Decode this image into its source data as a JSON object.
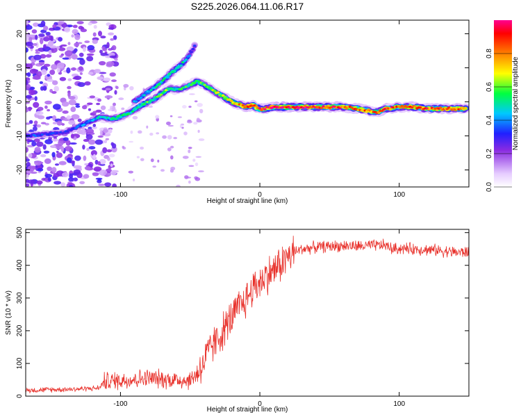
{
  "title": "S225.2026.064.11.06.R17",
  "colors": {
    "snr_line": "#e8302a",
    "axis": "#000000",
    "background": "#ffffff"
  },
  "chart_data": [
    {
      "type": "heatmap",
      "name": "spectrogram",
      "xlabel": "Height of straight line (km)",
      "ylabel": "Frequency (Hz)",
      "xlim": [
        -168,
        150
      ],
      "ylim": [
        -25,
        24
      ],
      "x_ticks": [
        -100,
        0,
        100
      ],
      "y_ticks": [
        -20,
        -10,
        0,
        10,
        20
      ],
      "colorbar": {
        "label": "Normalized spectral amplitude",
        "range": [
          0,
          1
        ],
        "ticks": [
          0.0,
          0.2,
          0.4,
          0.6,
          0.8
        ]
      },
      "ridge": {
        "description": "peak frequency (Hz) vs height (km)",
        "x": [
          -168,
          -140,
          -115,
          -105,
          -95,
          -85,
          -75,
          -65,
          -58,
          -50,
          -45,
          -40,
          -30,
          -20,
          -10,
          -5,
          0,
          10,
          20,
          40,
          60,
          70,
          80,
          85,
          90,
          100,
          110,
          120,
          130,
          140,
          148
        ],
        "y": [
          -10,
          -9,
          -4.5,
          -5,
          -3.5,
          -1,
          1,
          4,
          3.5,
          5,
          6,
          5,
          2.5,
          0,
          -1.5,
          -1,
          -2.2,
          -1.5,
          -1.5,
          -1.5,
          -1.5,
          -2,
          -2.8,
          -3,
          -2,
          -1.5,
          -1.5,
          -2,
          -2,
          -2,
          -2
        ],
        "amplitude": [
          0.35,
          0.3,
          0.45,
          0.5,
          0.5,
          0.55,
          0.55,
          0.6,
          0.5,
          0.55,
          0.6,
          0.6,
          0.65,
          0.7,
          0.85,
          0.9,
          0.9,
          0.95,
          0.95,
          0.9,
          0.85,
          0.85,
          0.8,
          0.8,
          0.85,
          0.85,
          0.85,
          0.85,
          0.85,
          0.85,
          0.85
        ]
      },
      "branch": {
        "description": "upper branch peak frequency (Hz)",
        "x": [
          -90,
          -80,
          -70,
          -62,
          -56,
          -50,
          -46
        ],
        "y": [
          0,
          3,
          6,
          9,
          11,
          14,
          17
        ],
        "amplitude": [
          0.4,
          0.45,
          0.5,
          0.55,
          0.5,
          0.35,
          0.3
        ]
      }
    },
    {
      "type": "line",
      "name": "snr",
      "xlabel": "Height of straight line (km)",
      "ylabel": "SNR (10 * v/v)",
      "xlim": [
        -168,
        150
      ],
      "ylim": [
        0,
        510
      ],
      "x_ticks": [
        -100,
        0,
        100
      ],
      "y_ticks": [
        0,
        100,
        200,
        300,
        400,
        500
      ],
      "series": [
        {
          "name": "SNR",
          "x": [
            -168,
            -150,
            -130,
            -115,
            -112,
            -100,
            -90,
            -80,
            -70,
            -60,
            -50,
            -45,
            -40,
            -35,
            -30,
            -25,
            -20,
            -15,
            -10,
            -5,
            0,
            5,
            10,
            15,
            20,
            25,
            30,
            40,
            50,
            60,
            70,
            80,
            90,
            95,
            100,
            110,
            120,
            130,
            140,
            150
          ],
          "y": [
            18,
            20,
            22,
            25,
            45,
            48,
            52,
            55,
            52,
            50,
            48,
            70,
            105,
            150,
            175,
            210,
            240,
            270,
            295,
            330,
            350,
            370,
            385,
            405,
            425,
            440,
            450,
            455,
            458,
            460,
            458,
            460,
            462,
            450,
            452,
            450,
            448,
            445,
            440,
            440
          ]
        }
      ]
    }
  ]
}
